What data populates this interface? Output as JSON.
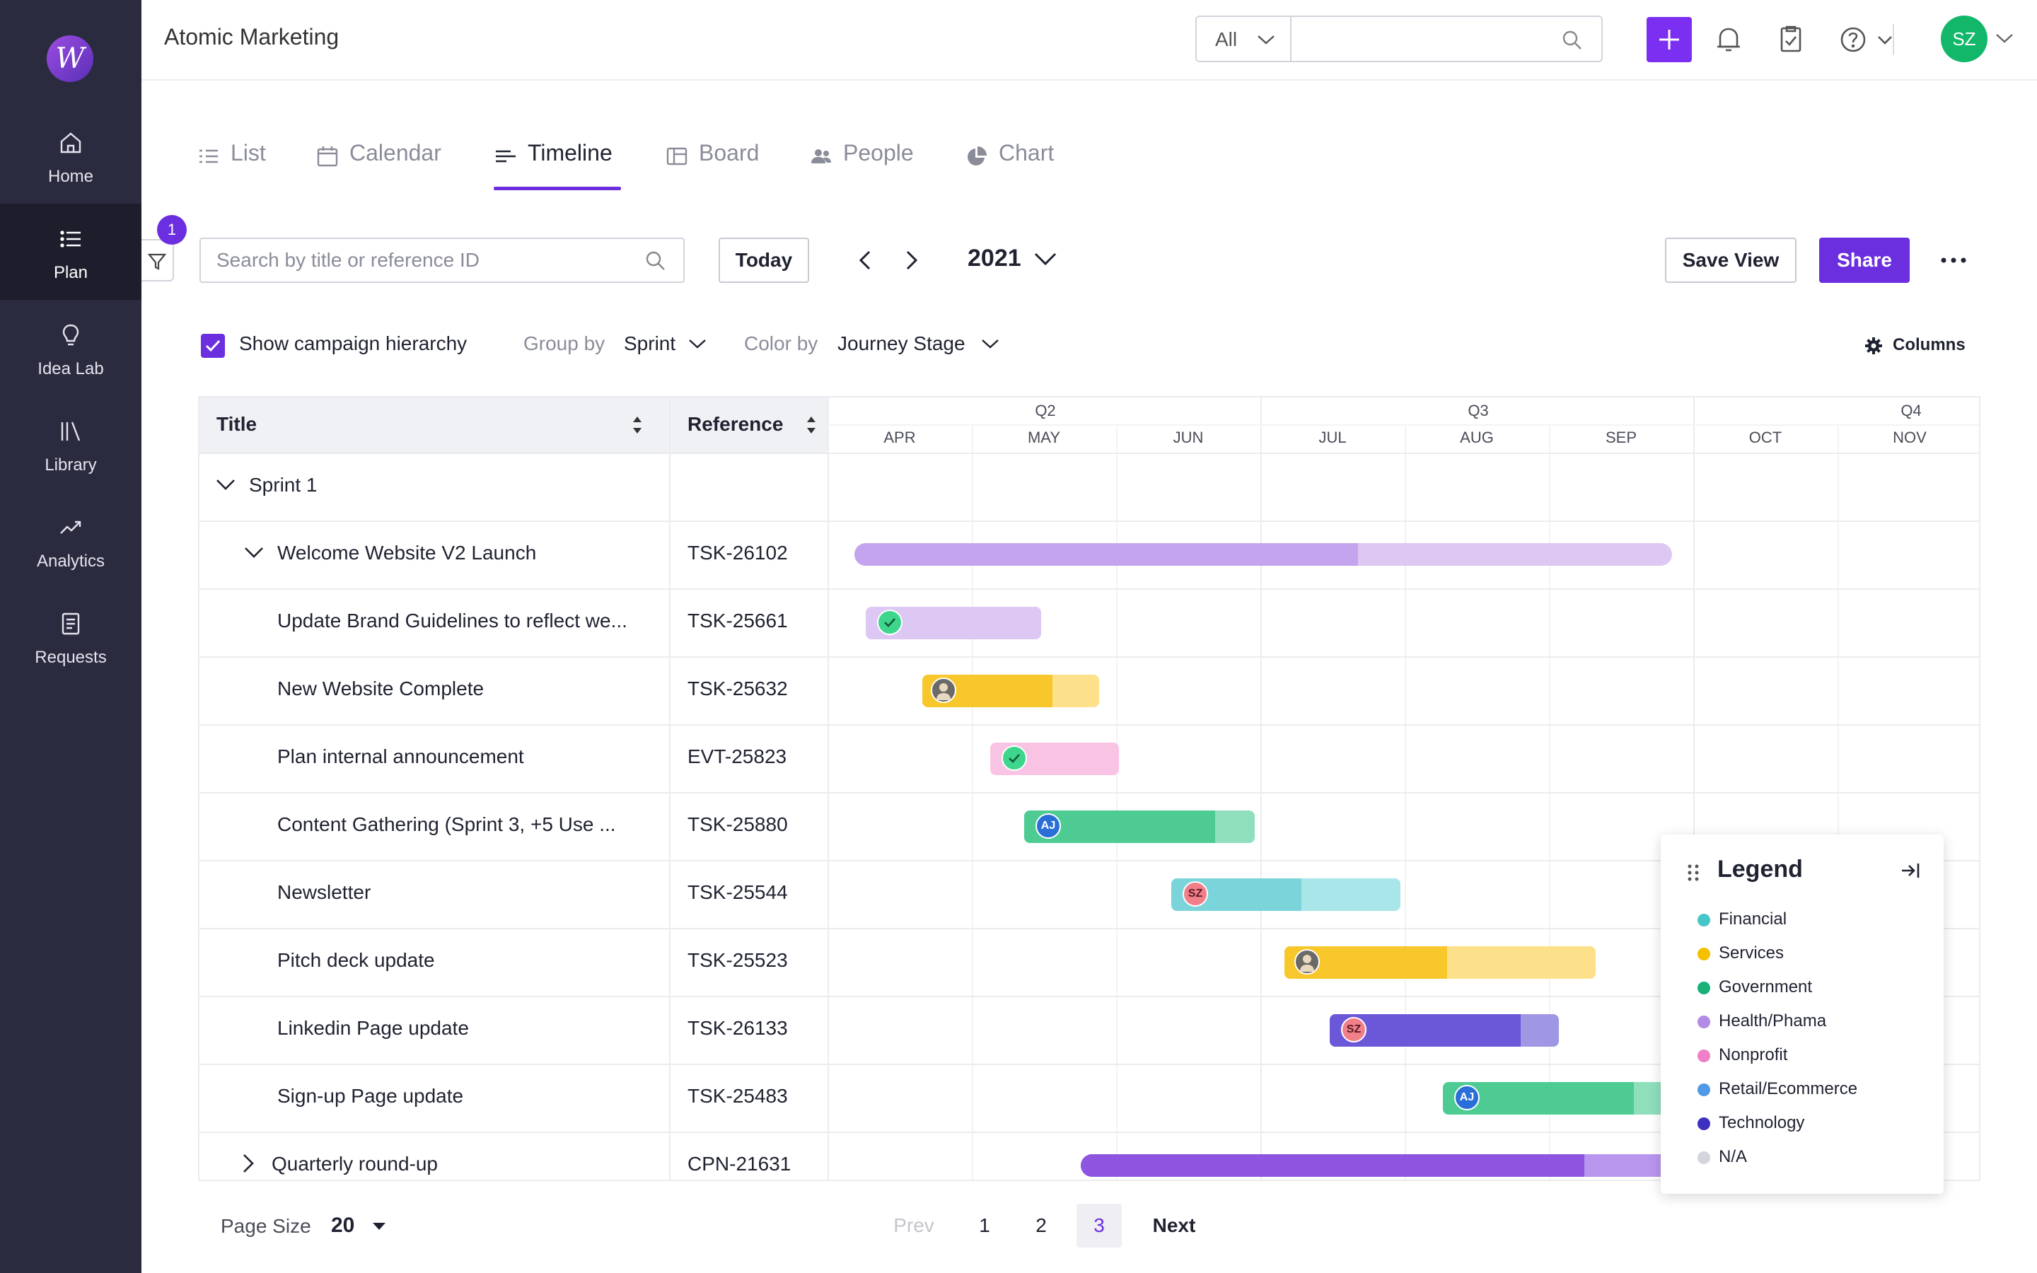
{
  "app": {
    "title": "Atomic Marketing"
  },
  "sidebar": {
    "items": [
      {
        "label": "Home",
        "icon": "home-icon"
      },
      {
        "label": "Plan",
        "icon": "list-icon",
        "active": true
      },
      {
        "label": "Idea Lab",
        "icon": "lightbulb-icon"
      },
      {
        "label": "Library",
        "icon": "library-icon"
      },
      {
        "label": "Analytics",
        "icon": "trend-icon"
      },
      {
        "label": "Requests",
        "icon": "document-icon"
      }
    ]
  },
  "header": {
    "scope": "All",
    "user_initials": "SZ"
  },
  "tabs": [
    {
      "label": "List",
      "icon": "list-icon"
    },
    {
      "label": "Calendar",
      "icon": "calendar-icon"
    },
    {
      "label": "Timeline",
      "icon": "timeline-icon",
      "active": true
    },
    {
      "label": "Board",
      "icon": "board-icon"
    },
    {
      "label": "People",
      "icon": "people-icon"
    },
    {
      "label": "Chart",
      "icon": "pie-icon"
    }
  ],
  "toolbar": {
    "filter_count": "1",
    "search_placeholder": "Search by title or reference ID",
    "today": "Today",
    "year": "2021",
    "save_view": "Save View",
    "share": "Share"
  },
  "options": {
    "hierarchy_label": "Show campaign hierarchy",
    "hierarchy_checked": true,
    "group_by_label": "Group by",
    "group_by_value": "Sprint",
    "color_by_label": "Color by",
    "color_by_value": "Journey Stage",
    "columns": "Columns"
  },
  "table": {
    "col_title": "Title",
    "col_reference": "Reference",
    "quarters": [
      "Q2",
      "Q3",
      "Q4"
    ],
    "months": [
      "APR",
      "MAY",
      "JUN",
      "JUL",
      "AUG",
      "SEP",
      "OCT",
      "NOV"
    ],
    "group": {
      "title": "Sprint 1"
    },
    "rows": [
      {
        "title": "Welcome Website V2 Launch",
        "ref": "TSK-26102"
      },
      {
        "title": "Update Brand Guidelines to reflect we...",
        "ref": "TSK-25661"
      },
      {
        "title": "New Website Complete",
        "ref": "TSK-25632"
      },
      {
        "title": "Plan internal announcement",
        "ref": "EVT-25823"
      },
      {
        "title": "Content Gathering (Sprint 3, +5 Use ...",
        "ref": "TSK-25880",
        "avatar": "AJ"
      },
      {
        "title": "Newsletter",
        "ref": "TSK-25544",
        "avatar": "SZ"
      },
      {
        "title": "Pitch deck update",
        "ref": "TSK-25523"
      },
      {
        "title": "Linkedin Page update",
        "ref": "TSK-26133",
        "avatar": "SZ"
      },
      {
        "title": "Sign-up Page update",
        "ref": "TSK-25483",
        "avatar": "AJ"
      },
      {
        "title": "Quarterly round-up",
        "ref": "CPN-21631"
      }
    ]
  },
  "legend": {
    "title": "Legend",
    "items": [
      {
        "label": "Financial",
        "color": "#45c7c9"
      },
      {
        "label": "Services",
        "color": "#f6c000"
      },
      {
        "label": "Government",
        "color": "#18b279"
      },
      {
        "label": "Health/Phama",
        "color": "#b28be6"
      },
      {
        "label": "Nonprofit",
        "color": "#ef7fc6"
      },
      {
        "label": "Retail/Ecommerce",
        "color": "#4f9ae6"
      },
      {
        "label": "Technology",
        "color": "#3d2fc0"
      },
      {
        "label": "N/A",
        "color": "#d4d4dc"
      }
    ]
  },
  "pagination": {
    "page_size_label": "Page Size",
    "page_size": "20",
    "prev": "Prev",
    "pages": [
      "1",
      "2",
      "3"
    ],
    "current": "3",
    "next": "Next"
  },
  "colors": {
    "accent": "#6b2fe0",
    "sidebar": "#2b2b40"
  }
}
